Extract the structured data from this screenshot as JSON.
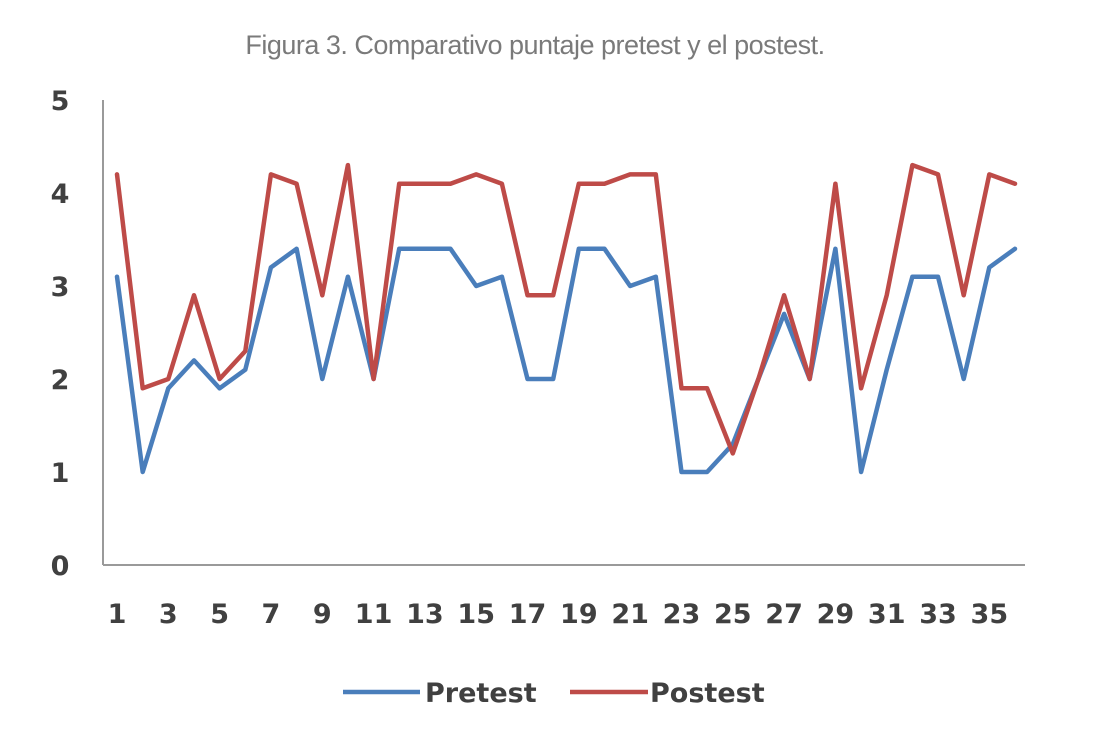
{
  "chart_data": {
    "type": "line",
    "title": "Figura 3. Comparativo puntaje pretest y el postest.",
    "xlabel": "",
    "ylabel": "",
    "x": [
      1,
      2,
      3,
      4,
      5,
      6,
      7,
      8,
      9,
      10,
      11,
      12,
      13,
      14,
      15,
      16,
      17,
      18,
      19,
      20,
      21,
      22,
      23,
      24,
      25,
      26,
      27,
      28,
      29,
      30,
      31,
      32,
      33,
      34,
      35,
      36
    ],
    "x_tick_labels": [
      "1",
      "3",
      "5",
      "7",
      "9",
      "11",
      "13",
      "15",
      "17",
      "19",
      "21",
      "23",
      "25",
      "27",
      "29",
      "31",
      "33",
      "35"
    ],
    "y_tick_labels": [
      "0",
      "1",
      "2",
      "3",
      "4",
      "5"
    ],
    "ylim": [
      0,
      5
    ],
    "grid": false,
    "legend_position": "bottom",
    "series": [
      {
        "name": "Pretest",
        "color": "#4a7ebb",
        "values": [
          3.1,
          1.0,
          1.9,
          2.2,
          1.9,
          2.1,
          3.2,
          3.4,
          2.0,
          3.1,
          2.0,
          3.4,
          3.4,
          3.4,
          3.0,
          3.1,
          2.0,
          2.0,
          3.4,
          3.4,
          3.0,
          3.1,
          1.0,
          1.0,
          1.3,
          2.0,
          2.7,
          2.0,
          3.4,
          1.0,
          2.1,
          3.1,
          3.1,
          2.0,
          3.2,
          3.4
        ]
      },
      {
        "name": "Postest",
        "color": "#be4b48",
        "values": [
          4.2,
          1.9,
          2.0,
          2.9,
          2.0,
          2.3,
          4.2,
          4.1,
          2.9,
          4.3,
          2.0,
          4.1,
          4.1,
          4.1,
          4.2,
          4.1,
          2.9,
          2.9,
          4.1,
          4.1,
          4.2,
          4.2,
          1.9,
          1.9,
          1.2,
          2.0,
          2.9,
          2.0,
          4.1,
          1.9,
          2.9,
          4.3,
          4.2,
          2.9,
          4.2,
          4.1
        ]
      }
    ]
  }
}
